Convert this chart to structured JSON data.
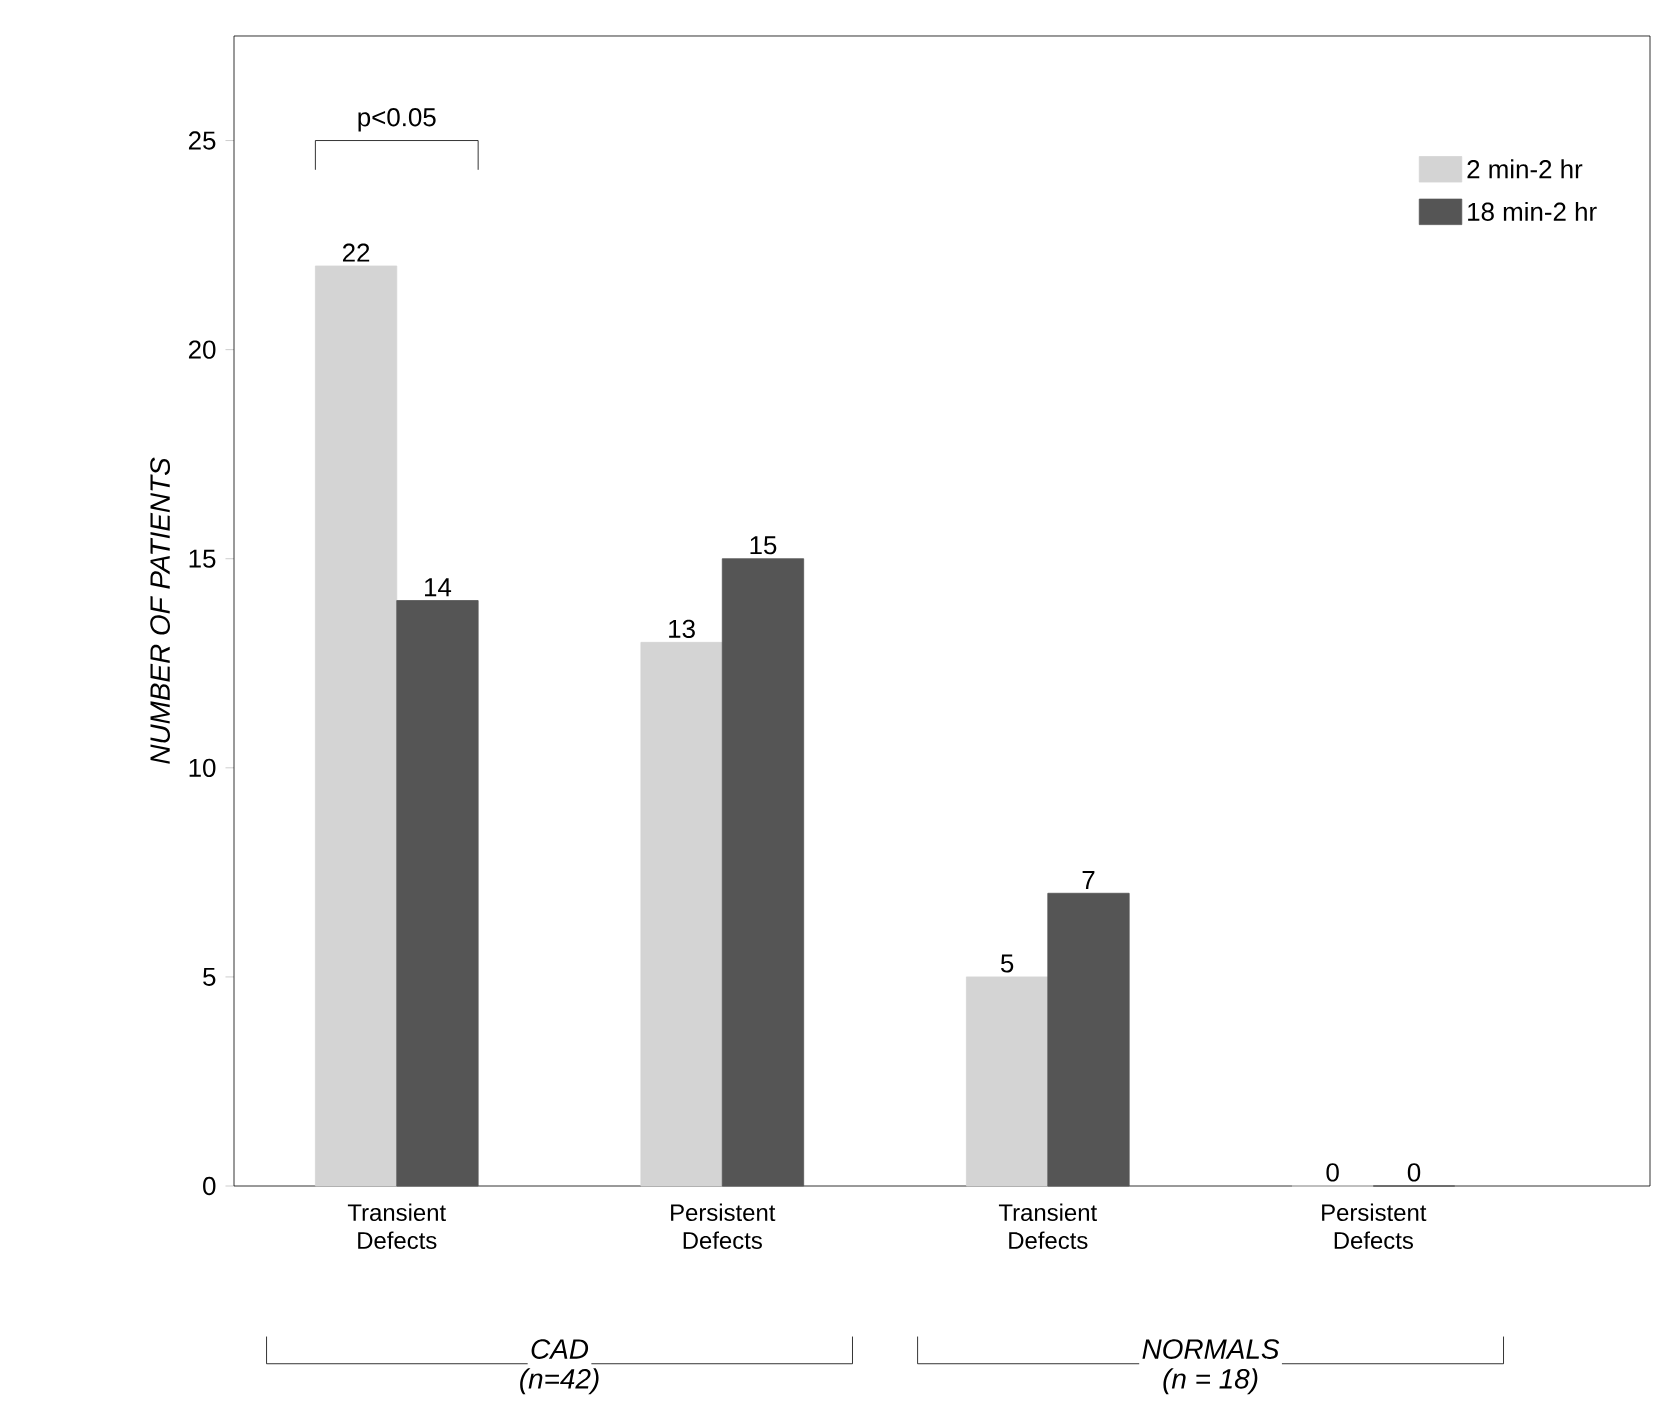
{
  "chart_data": {
    "type": "bar",
    "ylabel": "NUMBER OF PATIENTS",
    "categories": [
      "Transient Defects",
      "Persistent Defects",
      "Transient Defects",
      "Persistent Defects"
    ],
    "series": [
      {
        "name": "2 min-2 hr",
        "color": "#d4d4d4",
        "values": [
          22,
          13,
          5,
          0
        ]
      },
      {
        "name": "18 min-2 hr",
        "color": "#555555",
        "values": [
          14,
          15,
          7,
          0
        ]
      }
    ],
    "ylim": [
      0,
      27.5
    ],
    "yticks": [
      0,
      5,
      10,
      15,
      20,
      25
    ],
    "data_labels": true,
    "legend": "top right",
    "annotations": [
      "p<0.05",
      "CAD",
      "(n=42)",
      "NORMALS",
      "(n = 18)"
    ]
  }
}
